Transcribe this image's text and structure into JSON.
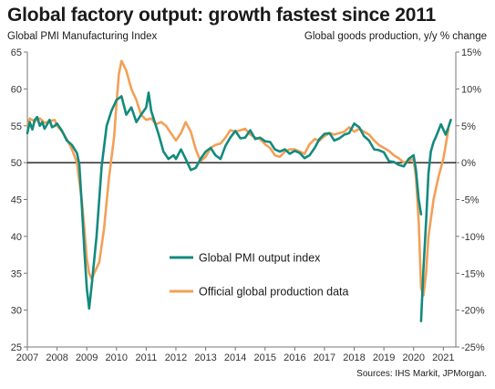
{
  "title": "Global factory output: growth fastest since 2011",
  "left_axis_title": "Global PMI Manufacturing  Index",
  "right_axis_title": "Global goods production, y/y % change",
  "source": "Sources: IHS Markit, JPMorgan.",
  "chart_data": {
    "type": "line",
    "x_tick_labels": [
      "2007",
      "2008",
      "2009",
      "2010",
      "2011",
      "2012",
      "2013",
      "2014",
      "2015",
      "2016",
      "2017",
      "2018",
      "2019",
      "2020",
      "2021"
    ],
    "left_ylim": [
      25,
      65
    ],
    "left_ticks": [
      "25",
      "30",
      "35",
      "40",
      "45",
      "50",
      "55",
      "60",
      "65"
    ],
    "right_ylim": [
      -25,
      15
    ],
    "right_ticks": [
      "-25%",
      "-20%",
      "-15%",
      "-10%",
      "-5%",
      "0%",
      "5%",
      "10%",
      "15%"
    ],
    "reference_line": {
      "axis": "left",
      "value": 50
    },
    "grid": false,
    "legend_position": "bottom-center",
    "series": [
      {
        "name": "Global PMI output index",
        "color": "#138a7e",
        "axis": "left",
        "x": [
          2007.0,
          2007.08,
          2007.17,
          2007.25,
          2007.33,
          2007.42,
          2007.5,
          2007.58,
          2007.67,
          2007.75,
          2007.83,
          2007.92,
          2008.0,
          2008.17,
          2008.33,
          2008.5,
          2008.67,
          2008.75,
          2008.83,
          2008.92,
          2009.0,
          2009.08,
          2009.17,
          2009.33,
          2009.5,
          2009.67,
          2009.83,
          2010.0,
          2010.17,
          2010.33,
          2010.5,
          2010.67,
          2010.83,
          2011.0,
          2011.08,
          2011.17,
          2011.25,
          2011.42,
          2011.58,
          2011.75,
          2011.92,
          2012.0,
          2012.17,
          2012.33,
          2012.5,
          2012.67,
          2012.83,
          2013.0,
          2013.17,
          2013.33,
          2013.5,
          2013.67,
          2013.83,
          2014.0,
          2014.17,
          2014.33,
          2014.5,
          2014.67,
          2014.83,
          2015.0,
          2015.17,
          2015.33,
          2015.5,
          2015.67,
          2015.83,
          2016.0,
          2016.17,
          2016.33,
          2016.5,
          2016.67,
          2016.83,
          2017.0,
          2017.17,
          2017.33,
          2017.5,
          2017.67,
          2017.83,
          2018.0,
          2018.17,
          2018.33,
          2018.5,
          2018.67,
          2018.83,
          2019.0,
          2019.17,
          2019.33,
          2019.5,
          2019.67,
          2019.83,
          2020.0,
          2020.08,
          2020.17,
          2020.25
        ],
        "y": [
          54.0,
          55.5,
          54.5,
          55.8,
          56.2,
          55.0,
          55.5,
          54.6,
          55.2,
          55.8,
          54.8,
          55.0,
          55.3,
          54.3,
          53.0,
          52.4,
          51.3,
          49.8,
          44.5,
          38.0,
          33.0,
          30.2,
          33.5,
          40.0,
          49.5,
          55.0,
          57.0,
          58.5,
          59.0,
          56.5,
          57.5,
          55.5,
          56.5,
          57.5,
          59.5,
          57.0,
          56.0,
          53.8,
          51.5,
          50.5,
          51.0,
          50.5,
          51.8,
          50.5,
          49.0,
          49.3,
          50.5,
          51.5,
          52.0,
          51.0,
          50.5,
          52.3,
          53.4,
          54.3,
          53.3,
          53.4,
          54.4,
          53.2,
          53.4,
          52.9,
          52.8,
          51.8,
          51.5,
          51.8,
          51.2,
          51.6,
          51.3,
          50.6,
          51.0,
          52.0,
          53.2,
          53.9,
          54.0,
          53.0,
          53.3,
          53.8,
          54.0,
          55.3,
          54.8,
          53.6,
          53.0,
          51.8,
          51.7,
          51.4,
          50.2,
          50.1,
          49.7,
          49.5,
          50.5,
          51.0,
          49.0,
          45.0,
          43.0
        ]
      },
      {
        "name": "Global PMI output index",
        "color": "#138a7e",
        "axis": "left",
        "x": [
          2020.25,
          2020.33,
          2020.42,
          2020.5,
          2020.58,
          2020.67,
          2020.75,
          2020.83,
          2020.92,
          2021.0,
          2021.08,
          2021.17,
          2021.25
        ],
        "y": [
          28.5,
          35.5,
          42.0,
          48.5,
          51.5,
          52.8,
          53.5,
          54.3,
          55.2,
          54.5,
          53.8,
          54.8,
          55.8
        ]
      },
      {
        "name": "Official global production data",
        "color": "#f2a057",
        "axis": "right",
        "x": [
          2007.0,
          2007.08,
          2007.25,
          2007.42,
          2007.58,
          2007.75,
          2007.92,
          2008.0,
          2008.17,
          2008.33,
          2008.5,
          2008.67,
          2008.83,
          2008.92,
          2009.0,
          2009.08,
          2009.17,
          2009.25,
          2009.42,
          2009.58,
          2009.75,
          2009.92,
          2010.0,
          2010.08,
          2010.17,
          2010.33,
          2010.5,
          2010.67,
          2010.83,
          2011.0,
          2011.17,
          2011.33,
          2011.5,
          2011.67,
          2011.83,
          2012.0,
          2012.17,
          2012.33,
          2012.5,
          2012.67,
          2012.83,
          2013.0,
          2013.17,
          2013.33,
          2013.5,
          2013.67,
          2013.83,
          2014.0,
          2014.17,
          2014.33,
          2014.5,
          2014.67,
          2014.83,
          2015.0,
          2015.17,
          2015.33,
          2015.5,
          2015.67,
          2015.83,
          2016.0,
          2016.17,
          2016.33,
          2016.5,
          2016.67,
          2016.83,
          2017.0,
          2017.17,
          2017.33,
          2017.5,
          2017.67,
          2017.83,
          2018.0,
          2018.17,
          2018.33,
          2018.5,
          2018.67,
          2018.83,
          2019.0,
          2019.17,
          2019.33,
          2019.5,
          2019.67,
          2019.83,
          2020.0,
          2020.08,
          2020.17,
          2020.25,
          2020.33,
          2020.42,
          2020.5,
          2020.67,
          2020.83,
          2021.0,
          2021.17
        ],
        "y": [
          5.0,
          6.0,
          5.6,
          6.0,
          5.4,
          5.6,
          5.8,
          5.0,
          4.2,
          3.2,
          1.8,
          0.0,
          -5.0,
          -9.0,
          -13.0,
          -15.0,
          -15.8,
          -15.0,
          -13.5,
          -9.0,
          -2.0,
          3.5,
          8.0,
          12.0,
          13.8,
          12.5,
          10.0,
          8.5,
          6.5,
          5.8,
          6.0,
          5.2,
          5.5,
          5.0,
          4.0,
          3.0,
          4.0,
          5.5,
          4.2,
          1.8,
          0.2,
          0.8,
          2.0,
          2.4,
          2.6,
          3.4,
          4.4,
          4.2,
          4.4,
          4.6,
          3.8,
          3.4,
          3.2,
          2.5,
          2.0,
          1.0,
          0.8,
          1.5,
          1.8,
          1.8,
          1.5,
          1.2,
          2.5,
          3.2,
          3.0,
          3.6,
          4.0,
          3.8,
          4.0,
          4.2,
          4.8,
          4.2,
          4.6,
          4.2,
          3.8,
          3.0,
          2.4,
          2.0,
          1.6,
          1.0,
          0.6,
          0.0,
          0.2,
          0.5,
          -2.0,
          -8.0,
          -17.0,
          -18.0,
          -15.0,
          -10.0,
          -5.0,
          -2.0,
          0.5,
          4.5
        ]
      }
    ],
    "legend_lines": [
      "Global PMI output index",
      "Official global production data"
    ]
  }
}
